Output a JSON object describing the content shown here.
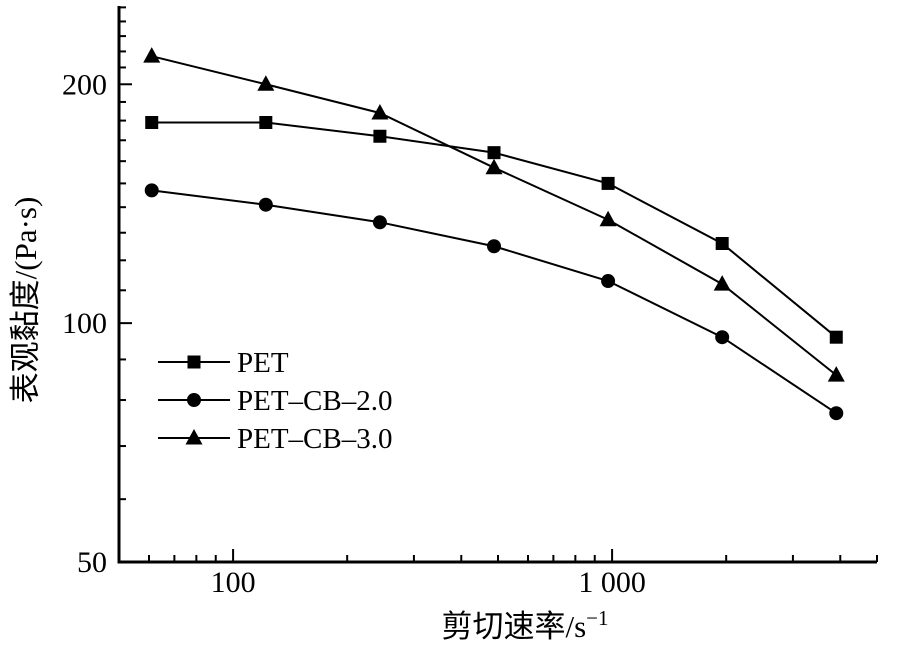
{
  "chart_data": {
    "type": "line",
    "title": "",
    "xlabel_base": "剪切速率/s",
    "xlabel_sup": "−1",
    "ylabel": "表观黏度/(Pa·s)",
    "x_scale": "log",
    "y_scale": "log",
    "xlim": [
      50,
      5000
    ],
    "ylim": [
      50,
      251
    ],
    "grid": false,
    "x_major_ticks": [
      {
        "value": 100,
        "label": "100"
      },
      {
        "value": 1000,
        "label": "1 000"
      }
    ],
    "x_minor_ticks": [
      60,
      70,
      80,
      90,
      200,
      300,
      400,
      500,
      600,
      700,
      800,
      900,
      2000,
      3000,
      4000,
      5000
    ],
    "y_major_ticks": [
      {
        "value": 50,
        "label": "50"
      },
      {
        "value": 100,
        "label": "100"
      },
      {
        "value": 200,
        "label": "200"
      }
    ],
    "y_minor_ticks": [
      60,
      70,
      80,
      90,
      110,
      120,
      130,
      140,
      150,
      160,
      170,
      180,
      190,
      210,
      220,
      230,
      240,
      250
    ],
    "x": [
      61,
      122,
      244,
      488,
      976,
      1952,
      3904
    ],
    "series": [
      {
        "name": "PET",
        "marker": "square",
        "values": [
          179,
          179,
          172,
          164,
          150,
          126,
          96
        ]
      },
      {
        "name": "PET–CB–2.0",
        "marker": "circle",
        "values": [
          147,
          141,
          134,
          125,
          113,
          96,
          77
        ]
      },
      {
        "name": "PET–CB–3.0",
        "marker": "triangle",
        "values": [
          217,
          200,
          184,
          157,
          135,
          112,
          86
        ]
      }
    ],
    "legend_position": "inside-left-middle",
    "colors": {
      "foreground": "#000000",
      "background": "#ffffff"
    }
  }
}
